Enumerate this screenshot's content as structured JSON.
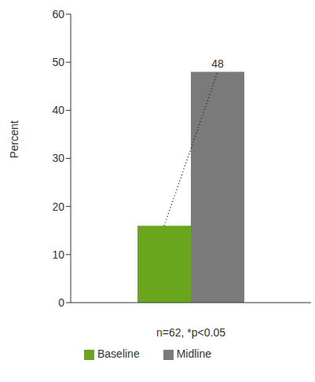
{
  "chart_data": {
    "type": "bar",
    "y_label": "Percent",
    "x_label": "n=62, *p<0.05",
    "categories": [
      null
    ],
    "series": [
      {
        "name": "Baseline",
        "color": "#6aa51e",
        "values": [
          16
        ]
      },
      {
        "name": "Midline",
        "color": "#7a7a7a",
        "values": [
          48
        ],
        "data_labels": true
      }
    ],
    "ylim": [
      0,
      60
    ],
    "yticks": [
      0,
      10,
      20,
      30,
      40,
      50,
      60
    ],
    "legend": "bottom"
  }
}
